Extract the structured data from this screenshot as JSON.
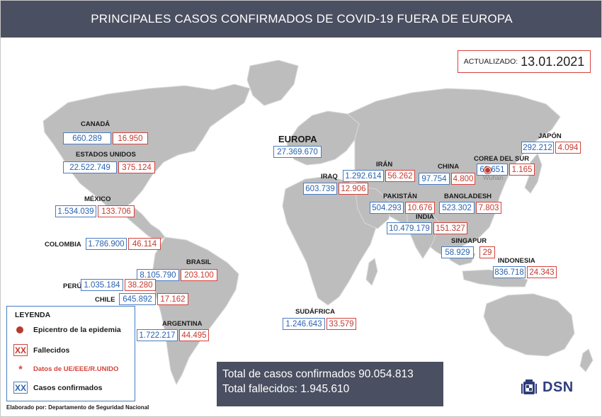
{
  "header": {
    "title": "PRINCIPALES CASOS CONFIRMADOS DE COVID-19 FUERA DE EUROPA"
  },
  "updated": {
    "label": "ACTUALIZADO:",
    "date": "13.01.2021"
  },
  "countries": {
    "canada": {
      "name": "CANADÁ",
      "confirmed": "660.289",
      "deaths": "16.950"
    },
    "usa": {
      "name": "ESTADOS UNIDOS",
      "confirmed": "22.522.749",
      "deaths": "375.124"
    },
    "mexico": {
      "name": "MÉXICO",
      "confirmed": "1.534.039",
      "deaths": "133.706"
    },
    "colombia": {
      "name": "COLOMBIA",
      "confirmed": "1.786.900",
      "deaths": "46.114"
    },
    "brasil": {
      "name": "BRASIL",
      "confirmed": "8.105.790",
      "deaths": "203.100"
    },
    "peru": {
      "name": "PERÚ",
      "confirmed": "1.035.184",
      "deaths": "38.280"
    },
    "chile": {
      "name": "CHILE",
      "confirmed": "645.892",
      "deaths": "17.162"
    },
    "argentina": {
      "name": "ARGENTINA",
      "confirmed": "1.722.217",
      "deaths": "44.495"
    },
    "europa": {
      "name": "EUROPA",
      "confirmed": "27.369.670"
    },
    "iraq": {
      "name": "IRAQ",
      "confirmed": "603.739",
      "deaths": "12.906"
    },
    "iran": {
      "name": "IRÁN",
      "confirmed": "1.292.614",
      "deaths": "56.262"
    },
    "pakistan": {
      "name": "PAKISTÁN",
      "confirmed": "504.293",
      "deaths": "10.676"
    },
    "india": {
      "name": "INDIA",
      "confirmed": "10.479.179",
      "deaths": "151.327"
    },
    "china": {
      "name": "CHINA",
      "confirmed": "97.754",
      "deaths": "4.800"
    },
    "bangladesh": {
      "name": "BANGLADESH",
      "confirmed": "523.302",
      "deaths": "7.803"
    },
    "korea": {
      "name": "COREA DEL SUR",
      "confirmed": "69.651",
      "deaths": "1.165"
    },
    "japan": {
      "name": "JAPÓN",
      "confirmed": "292.212",
      "deaths": "4.094"
    },
    "singapore": {
      "name": "SINGAPUR",
      "confirmed": "58.929",
      "deaths": "29"
    },
    "indonesia": {
      "name": "INDONESIA",
      "confirmed": "836.718",
      "deaths": "24.343"
    },
    "southafrica": {
      "name": "SUDÁFRICA",
      "confirmed": "1.246.643",
      "deaths": "33.579"
    }
  },
  "wuhan": {
    "label": "Wuhan"
  },
  "legend": {
    "title": "LEYENDA",
    "epicenter": "Epicentro de la epidemia",
    "deaths_symbol": "XX",
    "deaths": "Fallecidos",
    "eu_symbol": "*",
    "eu_data": "Datos de UE/EEE/R.UNIDO",
    "confirmed_symbol": "XX",
    "confirmed": "Casos confirmados"
  },
  "credit": "Elaborado por: Departamento de Seguridad Nacional",
  "totals": {
    "confirmed": "Total de casos confirmados 90.054.813",
    "deaths": "Total fallecidos: 1.945.610"
  },
  "logo": {
    "text": "DSN",
    "icon": "spanish-coat-of-arms-icon"
  },
  "colors": {
    "header": "#4a4f61",
    "confirmed": "#2a62b0",
    "deaths": "#c5392f",
    "land": "#bdbdbd"
  }
}
